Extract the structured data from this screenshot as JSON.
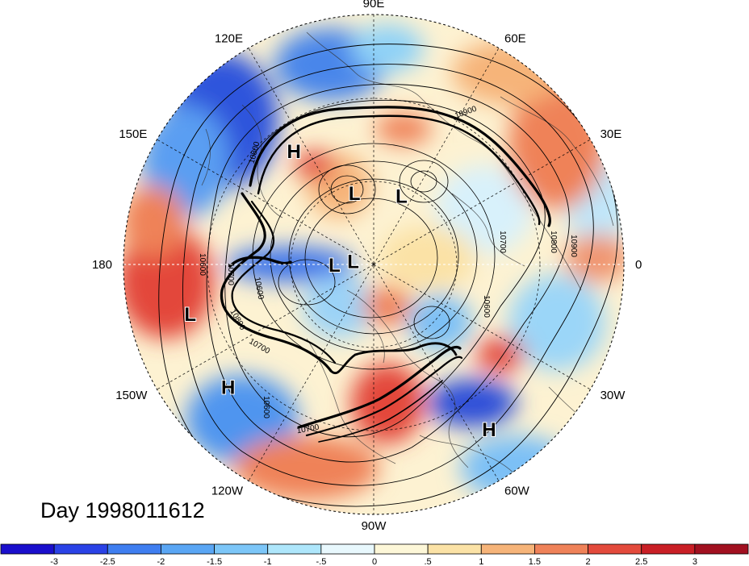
{
  "title": "Day 1998011612",
  "longitude_labels": [
    {
      "text": "90E",
      "lon": 90
    },
    {
      "text": "60E",
      "lon": 60
    },
    {
      "text": "30E",
      "lon": 30
    },
    {
      "text": "0",
      "lon": 0
    },
    {
      "text": "30W",
      "lon": -30
    },
    {
      "text": "60W",
      "lon": -60
    },
    {
      "text": "90W",
      "lon": -90
    },
    {
      "text": "120W",
      "lon": -120
    },
    {
      "text": "150W",
      "lon": -150
    },
    {
      "text": "180",
      "lon": 180
    },
    {
      "text": "150E",
      "lon": 150
    },
    {
      "text": "120E",
      "lon": 120
    }
  ],
  "pressure_centers": [
    {
      "text": "H",
      "type": "high",
      "lon": 125,
      "lat": 40
    },
    {
      "text": "L",
      "type": "low",
      "lon": 105,
      "lat": 62
    },
    {
      "text": "L",
      "type": "low",
      "lon": 68,
      "lat": 62
    },
    {
      "text": "L",
      "type": "low",
      "lon": 180,
      "lat": 75
    },
    {
      "text": "L",
      "type": "low",
      "lon": 170,
      "lat": 82
    },
    {
      "text": "L",
      "type": "low",
      "lon": -165,
      "lat": 25
    },
    {
      "text": "H",
      "type": "high",
      "lon": -140,
      "lat": 25
    },
    {
      "text": "H",
      "type": "high",
      "lon": -55,
      "lat": 22
    }
  ],
  "contour_labels": [
    "10900",
    "10800",
    "10700",
    "10600",
    "10800",
    "10700",
    "10600",
    "10900",
    "10800",
    "10700",
    "10600",
    "10600",
    "10700"
  ],
  "colorbar": {
    "ticks": [
      "-3",
      "-2.5",
      "-2",
      "-1.5",
      "-1",
      "-.5",
      "0",
      ".5",
      "1",
      "1.5",
      "2",
      "2.5",
      "3"
    ],
    "colors": [
      "#1a0fcc",
      "#2a42e6",
      "#3f7ef0",
      "#5aa6f4",
      "#7cc6f8",
      "#aee6fb",
      "#e8f8fd",
      "#fdf7d8",
      "#fbe2a6",
      "#f6b479",
      "#ef8259",
      "#e34a3c",
      "#c91f26",
      "#a11020"
    ]
  }
}
